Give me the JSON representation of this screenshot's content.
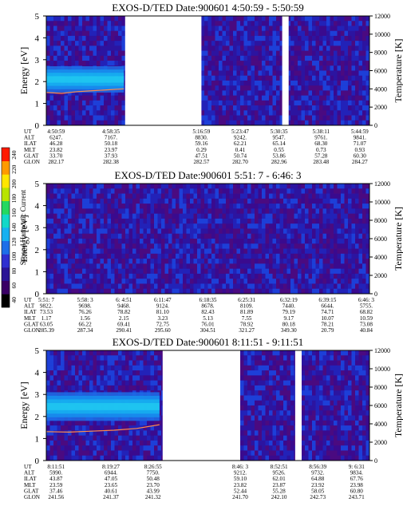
{
  "colorbar": {
    "label": "Second Harmonic Current",
    "ticks": [
      "40",
      "60",
      "80",
      "100",
      "120",
      "140",
      "160",
      "180",
      "200",
      "220",
      "240"
    ],
    "colors": [
      "#000000",
      "#3a0066",
      "#2a1496",
      "#2f2fd0",
      "#1d6ee8",
      "#16b0f0",
      "#12d8c8",
      "#24d860",
      "#b8e400",
      "#ffe600",
      "#ff9a00",
      "#ff1a00"
    ]
  },
  "chart_data": [
    {
      "type": "heatmap",
      "title": "EXOS-D/TED   Date:900601  4:50:59 - 5:50:59",
      "ylabel": "Energy [eV]",
      "y2label": "Temperature [K]",
      "ylim": [
        0,
        5
      ],
      "y2lim": [
        0,
        12000
      ],
      "yticks": [
        "0",
        "1",
        "2",
        "3",
        "4",
        "5"
      ],
      "y2ticks": [
        "0",
        "2000",
        "4000",
        "6000",
        "8000",
        "10000",
        "12000"
      ],
      "data_gaps": [
        [
          0.244,
          0.48
        ],
        [
          0.73,
          0.75
        ]
      ],
      "band": {
        "x": [
          0,
          0.24
        ],
        "energy_center": 2.1,
        "energy_width": 1.2
      },
      "temperature": {
        "x": [
          0,
          0.24
        ],
        "values": [
          3600,
          3500,
          3700,
          3800,
          3900,
          4000
        ]
      },
      "info_rows": [
        {
          "label": "UT",
          "values": [
            "4:50:59",
            "4:58:35",
            "5:16:59",
            "5:23:47",
            "5:30:35",
            "5:38:11",
            "5:44:59"
          ]
        },
        {
          "label": "ALT",
          "values": [
            "6247.",
            "7167.",
            "8830.",
            "9242.",
            "9547.",
            "9761.",
            "9841."
          ]
        },
        {
          "label": "ILAT",
          "values": [
            "46.28",
            "50.18",
            "59.16",
            "62.21",
            "65.14",
            "68.30",
            "71.07"
          ]
        },
        {
          "label": "MLT",
          "values": [
            "23.82",
            "23.97",
            "0.29",
            "0.41",
            "0.55",
            "0.73",
            "0.93"
          ]
        },
        {
          "label": "GLAT",
          "values": [
            "33.70",
            "37.93",
            "47.51",
            "50.74",
            "53.86",
            "57.28",
            "60.30"
          ]
        },
        {
          "label": "GLON",
          "values": [
            "282.17",
            "282.38",
            "282.57",
            "282.70",
            "282.96",
            "283.48",
            "284.27"
          ]
        }
      ],
      "info_x": [
        0.03,
        0.2,
        0.48,
        0.6,
        0.72,
        0.85,
        0.97
      ]
    },
    {
      "type": "heatmap",
      "title": "EXOS-D/TED   Date:900601  5:51: 7 - 6:46: 3",
      "ylabel": "Energy [eV]",
      "y2label": "Temperature [K]",
      "ylim": [
        0,
        5
      ],
      "y2lim": [
        0,
        12000
      ],
      "yticks": [
        "0",
        "1",
        "2",
        "3",
        "4",
        "5"
      ],
      "y2ticks": [
        "0",
        "2000",
        "4000",
        "6000",
        "8000",
        "10000",
        "12000"
      ],
      "data_gaps": [],
      "info_rows": [
        {
          "label": "UT",
          "values": [
            "5:51: 7",
            "5:58: 3",
            "6: 4:51",
            "6:11:47",
            "6:18:35",
            "6:25:31",
            "6:32:19",
            "6:39:15",
            "6:46: 3"
          ]
        },
        {
          "label": "ALT",
          "values": [
            "9822.",
            "9698.",
            "9468.",
            "9124.",
            "8678.",
            "8109.",
            "7440.",
            "6644.",
            "5755."
          ]
        },
        {
          "label": "ILAT",
          "values": [
            "73.53",
            "76.26",
            "78.82",
            "81.10",
            "82.43",
            "81.89",
            "79.19",
            "74.71",
            "68.82"
          ]
        },
        {
          "label": "MLT",
          "values": [
            "1.17",
            "1.56",
            "2.15",
            "3.23",
            "5.13",
            "7.55",
            "9.17",
            "10.07",
            "10.59"
          ]
        },
        {
          "label": "GLAT",
          "values": [
            "63.05",
            "66.22",
            "69.41",
            "72.75",
            "76.01",
            "78.92",
            "80.18",
            "78.21",
            "73.08"
          ]
        },
        {
          "label": "GLON",
          "values": [
            "285.39",
            "287.34",
            "290.41",
            "295.60",
            "304.51",
            "321.27",
            "349.30",
            "20.79",
            "40.84"
          ]
        }
      ],
      "info_x": [
        0.0,
        0.12,
        0.24,
        0.36,
        0.5,
        0.62,
        0.75,
        0.87,
        0.99
      ]
    },
    {
      "type": "heatmap",
      "title": "EXOS-D/TED   Date:900601  8:11:51 - 9:11:51",
      "ylabel": "Energy [eV]",
      "y2label": "Temperature [K]",
      "ylim": [
        0,
        5
      ],
      "y2lim": [
        0,
        12000
      ],
      "yticks": [
        "0",
        "1",
        "2",
        "3",
        "4",
        "5"
      ],
      "y2ticks": [
        "0",
        "2000",
        "4000",
        "6000",
        "8000",
        "10000",
        "12000"
      ],
      "data_gaps": [
        [
          0.36,
          0.6
        ],
        [
          0.77,
          0.79
        ]
      ],
      "band": {
        "x": [
          0,
          0.35
        ],
        "energy_center": 2.45,
        "energy_width": 1.3
      },
      "temperature": {
        "x": [
          0,
          0.35
        ],
        "values": [
          3150,
          3100,
          3200,
          3300,
          3500,
          3900
        ]
      },
      "info_rows": [
        {
          "label": "UT",
          "values": [
            "8:11:51",
            "8:19:27",
            "8:26:55",
            "8:46: 3",
            "8:52:51",
            "8:56:39",
            "9: 6:31"
          ]
        },
        {
          "label": "ALT",
          "values": [
            "5990.",
            "6944.",
            "7750.",
            "9212.",
            "9526.",
            "9732.",
            "9834."
          ]
        },
        {
          "label": "ILAT",
          "values": [
            "43.87",
            "47.05",
            "50.48",
            "59.10",
            "62.01",
            "64.88",
            "67.76"
          ]
        },
        {
          "label": "MLT",
          "values": [
            "23.59",
            "23.65",
            "23.70",
            "23.82",
            "23.87",
            "23.92",
            "23.98"
          ]
        },
        {
          "label": "GLAT",
          "values": [
            "37.46",
            "40.61",
            "43.99",
            "52.44",
            "55.28",
            "58.05",
            "60.80"
          ]
        },
        {
          "label": "GLON",
          "values": [
            "241.56",
            "241.37",
            "241.32",
            "241.70",
            "242.10",
            "242.73",
            "243.71"
          ]
        }
      ],
      "info_x": [
        0.03,
        0.2,
        0.33,
        0.6,
        0.72,
        0.84,
        0.96
      ]
    }
  ]
}
